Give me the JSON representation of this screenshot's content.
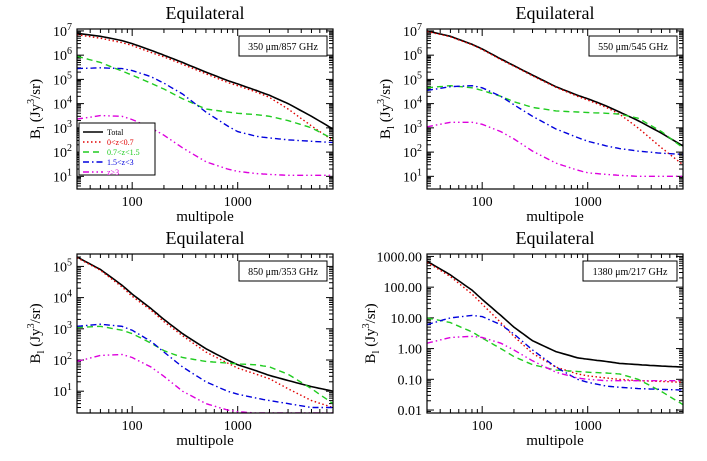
{
  "chart_data": [
    {
      "type": "line",
      "title": "Equilateral",
      "xlabel": "multipole",
      "ylabel": "B_l (Jy^3/sr)",
      "xscale": "log",
      "yscale": "log",
      "xlim": [
        30,
        8000
      ],
      "ylim": [
        3,
        12000000
      ],
      "xticks": [
        100,
        1000
      ],
      "xtick_labels": [
        "100",
        "1000"
      ],
      "yticks": [
        10,
        100,
        1000,
        10000,
        100000,
        1000000,
        10000000
      ],
      "ytick_labels": [
        "10^1",
        "10^2",
        "10^3",
        "10^4",
        "10^5",
        "10^6",
        "10^7"
      ],
      "annotation": "350 μm/857 GHz",
      "legend": {
        "position": "bottom-left",
        "entries": [
          "Total",
          "0<z<0.7",
          "0.7<z<1.5",
          "1.5<z<3",
          "z>3"
        ]
      },
      "series": [
        {
          "name": "Total",
          "color": "#000000",
          "dash": "solid",
          "x": [
            30,
            50,
            80,
            100,
            150,
            200,
            300,
            500,
            800,
            1000,
            1500,
            2000,
            3000,
            5000,
            8000
          ],
          "y": [
            8000000,
            6000000,
            4000000,
            3000000,
            1600000,
            1000000,
            500000,
            200000,
            90000,
            65000,
            35000,
            22000,
            10000,
            3000,
            900
          ]
        },
        {
          "name": "0<z<0.7",
          "color": "#e00000",
          "dash": "dotted",
          "x": [
            30,
            50,
            80,
            100,
            150,
            200,
            300,
            500,
            800,
            1000,
            1500,
            2000,
            3000,
            5000,
            8000
          ],
          "y": [
            7000000,
            5000000,
            3300000,
            2500000,
            1300000,
            850000,
            420000,
            170000,
            75000,
            55000,
            30000,
            18000,
            6000,
            1200,
            300
          ]
        },
        {
          "name": "0.7<z<1.5",
          "color": "#20cc20",
          "dash": "dashed",
          "x": [
            30,
            50,
            80,
            100,
            150,
            200,
            300,
            500,
            800,
            1000,
            1500,
            2000,
            3000,
            5000,
            8000
          ],
          "y": [
            900000,
            500000,
            220000,
            150000,
            70000,
            40000,
            16000,
            6000,
            4500,
            4000,
            3500,
            3000,
            2000,
            1000,
            350
          ]
        },
        {
          "name": "1.5<z<3",
          "color": "#0000dd",
          "dash": "dashdot",
          "x": [
            30,
            50,
            80,
            100,
            150,
            200,
            300,
            500,
            800,
            1000,
            1500,
            2000,
            3000,
            5000,
            8000
          ],
          "y": [
            280000,
            300000,
            280000,
            230000,
            130000,
            70000,
            25000,
            4500,
            1200,
            700,
            450,
            380,
            320,
            280,
            250
          ]
        },
        {
          "name": "z>3",
          "color": "#dd00dd",
          "dash": "dashdotdot",
          "x": [
            30,
            50,
            80,
            100,
            150,
            200,
            300,
            500,
            800,
            1000,
            1500,
            2000,
            3000,
            5000,
            8000
          ],
          "y": [
            2300,
            3200,
            3000,
            2200,
            1000,
            500,
            150,
            40,
            20,
            16,
            13,
            12,
            11,
            11,
            11
          ]
        }
      ]
    },
    {
      "type": "line",
      "title": "Equilateral",
      "xlabel": "multipole",
      "ylabel": "B_l (Jy^3/sr)",
      "xscale": "log",
      "yscale": "log",
      "xlim": [
        30,
        8000
      ],
      "ylim": [
        3,
        12000000
      ],
      "xticks": [
        100,
        1000
      ],
      "xtick_labels": [
        "100",
        "1000"
      ],
      "yticks": [
        10,
        100,
        1000,
        10000,
        100000,
        1000000,
        10000000
      ],
      "ytick_labels": [
        "10^1",
        "10^2",
        "10^3",
        "10^4",
        "10^5",
        "10^6",
        "10^7"
      ],
      "annotation": "550 μm/545 GHz",
      "series": [
        {
          "name": "Total",
          "color": "#000000",
          "dash": "solid",
          "x": [
            30,
            50,
            80,
            100,
            150,
            200,
            300,
            500,
            800,
            1000,
            1500,
            2000,
            3000,
            5000,
            8000
          ],
          "y": [
            10000000,
            6000000,
            2800000,
            1800000,
            700000,
            370000,
            150000,
            50000,
            22000,
            16000,
            8000,
            4500,
            2000,
            600,
            180
          ]
        },
        {
          "name": "0<z<0.7",
          "color": "#e00000",
          "dash": "dotted",
          "x": [
            30,
            50,
            80,
            100,
            150,
            200,
            300,
            500,
            800,
            1000,
            1500,
            2000,
            3000,
            5000,
            8000
          ],
          "y": [
            9500000,
            5700000,
            2700000,
            1700000,
            650000,
            350000,
            140000,
            47000,
            20000,
            14000,
            7000,
            3700,
            1000,
            150,
            30
          ]
        },
        {
          "name": "0.7<z<1.5",
          "color": "#20cc20",
          "dash": "dashed",
          "x": [
            30,
            50,
            80,
            100,
            150,
            200,
            300,
            500,
            800,
            1000,
            1500,
            2000,
            3000,
            5000,
            8000
          ],
          "y": [
            45000,
            55000,
            45000,
            35000,
            20000,
            12000,
            7000,
            5000,
            4500,
            4300,
            4000,
            3700,
            2500,
            700,
            150
          ]
        },
        {
          "name": "1.5<z<3",
          "color": "#0000dd",
          "dash": "dashdot",
          "x": [
            30,
            50,
            80,
            100,
            150,
            200,
            300,
            500,
            800,
            1000,
            1500,
            2000,
            3000,
            5000,
            8000
          ],
          "y": [
            35000,
            50000,
            55000,
            45000,
            20000,
            9000,
            3000,
            900,
            400,
            280,
            180,
            140,
            110,
            90,
            80
          ]
        },
        {
          "name": "z>3",
          "color": "#dd00dd",
          "dash": "dashdotdot",
          "x": [
            30,
            50,
            80,
            100,
            150,
            200,
            300,
            500,
            800,
            1000,
            1500,
            2000,
            3000,
            5000,
            8000
          ],
          "y": [
            1100,
            1700,
            1700,
            1400,
            700,
            350,
            110,
            35,
            18,
            14,
            12,
            11,
            10,
            10,
            10
          ]
        }
      ]
    },
    {
      "type": "line",
      "title": "Equilateral",
      "xlabel": "multipole",
      "ylabel": "B_l (Jy^3/sr)",
      "xscale": "log",
      "yscale": "log",
      "xlim": [
        30,
        8000
      ],
      "ylim": [
        2,
        250000
      ],
      "xticks": [
        100,
        1000
      ],
      "xtick_labels": [
        "100",
        "1000"
      ],
      "yticks": [
        10,
        100,
        1000,
        10000,
        100000
      ],
      "ytick_labels": [
        "10^1",
        "10^2",
        "10^3",
        "10^4",
        "10^5"
      ],
      "annotation": "850 μm/353 GHz",
      "series": [
        {
          "name": "Total",
          "color": "#000000",
          "dash": "solid",
          "x": [
            30,
            50,
            80,
            100,
            150,
            200,
            300,
            500,
            800,
            1000,
            1500,
            2000,
            3000,
            5000,
            8000
          ],
          "y": [
            200000,
            80000,
            25000,
            13000,
            4500,
            2000,
            700,
            230,
            100,
            70,
            45,
            32,
            22,
            14,
            10
          ]
        },
        {
          "name": "0<z<0.7",
          "color": "#e00000",
          "dash": "dotted",
          "x": [
            30,
            50,
            80,
            100,
            150,
            200,
            300,
            500,
            800,
            1000,
            1500,
            2000,
            3000,
            5000,
            8000
          ],
          "y": [
            190000,
            75000,
            22000,
            11000,
            4000,
            1700,
            600,
            180,
            80,
            55,
            35,
            25,
            12,
            5,
            3
          ]
        },
        {
          "name": "0.7<z<1.5",
          "color": "#20cc20",
          "dash": "dashed",
          "x": [
            30,
            50,
            80,
            100,
            150,
            200,
            300,
            500,
            800,
            1000,
            1500,
            2000,
            3000,
            5000,
            8000
          ],
          "y": [
            1100,
            1200,
            900,
            700,
            350,
            200,
            120,
            90,
            80,
            75,
            70,
            60,
            35,
            12,
            4
          ]
        },
        {
          "name": "1.5<z<3",
          "color": "#0000dd",
          "dash": "dashdot",
          "x": [
            30,
            50,
            80,
            100,
            150,
            200,
            300,
            500,
            800,
            1000,
            1500,
            2000,
            3000,
            5000,
            8000
          ],
          "y": [
            1200,
            1400,
            1200,
            900,
            400,
            180,
            60,
            20,
            10,
            8,
            6,
            5,
            4,
            3,
            3
          ]
        },
        {
          "name": "z>3",
          "color": "#dd00dd",
          "dash": "dashdotdot",
          "x": [
            30,
            50,
            80,
            100,
            150,
            200,
            300,
            500,
            800,
            1000,
            1500,
            2000,
            3000,
            5000,
            8000
          ],
          "y": [
            90,
            140,
            150,
            120,
            60,
            30,
            10,
            4,
            2.5,
            2.2,
            2,
            2,
            2,
            2,
            2
          ]
        }
      ]
    },
    {
      "type": "line",
      "title": "Equilateral",
      "xlabel": "multipole",
      "ylabel": "B_l (Jy^3/sr)",
      "xscale": "log",
      "yscale": "log",
      "xlim": [
        30,
        8000
      ],
      "ylim": [
        0.008,
        1200
      ],
      "xticks": [
        100,
        1000
      ],
      "xtick_labels": [
        "100",
        "1000"
      ],
      "yticks": [
        0.01,
        0.1,
        1,
        10,
        100,
        1000
      ],
      "ytick_labels": [
        "0.01",
        "0.10",
        "1.00",
        "10.00",
        "100.00",
        "1000.00"
      ],
      "annotation": "1380 μm/217 GHz",
      "series": [
        {
          "name": "Total",
          "color": "#000000",
          "dash": "solid",
          "x": [
            30,
            50,
            80,
            100,
            150,
            200,
            300,
            500,
            800,
            1000,
            1500,
            2000,
            3000,
            5000,
            8000
          ],
          "y": [
            700,
            250,
            80,
            40,
            12,
            5,
            1.8,
            0.8,
            0.5,
            0.45,
            0.38,
            0.33,
            0.3,
            0.27,
            0.25
          ]
        },
        {
          "name": "0<z<0.7",
          "color": "#e00000",
          "dash": "dotted",
          "x": [
            30,
            50,
            80,
            100,
            150,
            200,
            300,
            500,
            800,
            1000,
            1500,
            2000,
            3000,
            5000,
            8000
          ],
          "y": [
            650,
            220,
            60,
            28,
            7,
            2.5,
            0.7,
            0.25,
            0.15,
            0.13,
            0.11,
            0.1,
            0.09,
            0.085,
            0.08
          ]
        },
        {
          "name": "0.7<z<1.5",
          "color": "#20cc20",
          "dash": "dashed",
          "x": [
            30,
            50,
            80,
            100,
            150,
            200,
            300,
            500,
            800,
            1000,
            1500,
            2000,
            3000,
            5000,
            8000
          ],
          "y": [
            10,
            7,
            3.5,
            2.2,
            1,
            0.55,
            0.3,
            0.2,
            0.18,
            0.17,
            0.16,
            0.15,
            0.1,
            0.04,
            0.015
          ]
        },
        {
          "name": "1.5<z<3",
          "color": "#0000dd",
          "dash": "dashdot",
          "x": [
            30,
            50,
            80,
            100,
            150,
            200,
            300,
            500,
            800,
            1000,
            1500,
            2000,
            3000,
            5000,
            8000
          ],
          "y": [
            6,
            10,
            12,
            11,
            6,
            3,
            0.9,
            0.25,
            0.1,
            0.08,
            0.06,
            0.055,
            0.05,
            0.047,
            0.045
          ]
        },
        {
          "name": "z>3",
          "color": "#dd00dd",
          "dash": "dashdotdot",
          "x": [
            30,
            50,
            80,
            100,
            150,
            200,
            300,
            500,
            800,
            1000,
            1500,
            2000,
            3000,
            5000,
            8000
          ],
          "y": [
            1.5,
            2.3,
            2.5,
            2.3,
            1.5,
            0.9,
            0.4,
            0.17,
            0.11,
            0.1,
            0.09,
            0.09,
            0.09,
            0.09,
            0.09
          ]
        }
      ]
    }
  ]
}
